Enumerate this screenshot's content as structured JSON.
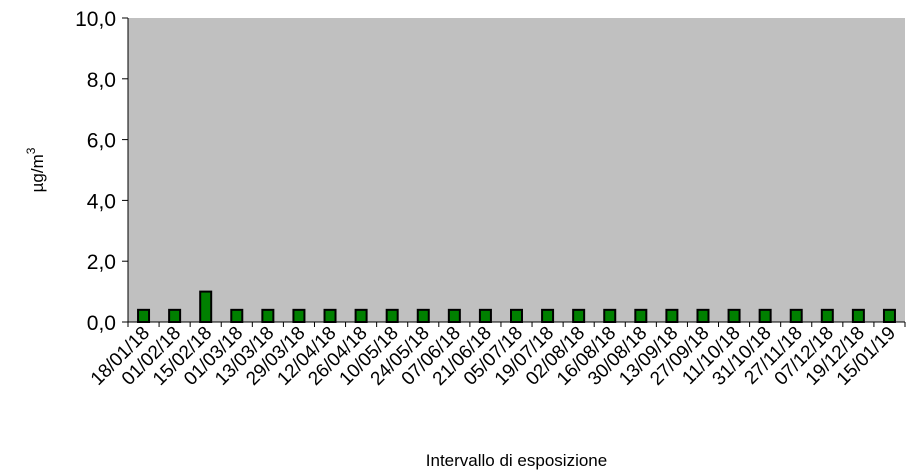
{
  "chart_data": {
    "type": "bar",
    "xlabel": "Intervallo di esposizione",
    "ylabel": "µg/m",
    "ylabel_superscript": "3",
    "ylim": [
      0,
      10
    ],
    "yticks": [
      "0,0",
      "2,0",
      "4,0",
      "6,0",
      "8,0",
      "10,0"
    ],
    "ytick_values": [
      0,
      2,
      4,
      6,
      8,
      10
    ],
    "grid": false,
    "legend": "none",
    "categories": [
      "18/01/18",
      "01/02/18",
      "15/02/18",
      "01/03/18",
      "13/03/18",
      "29/03/18",
      "12/04/18",
      "26/04/18",
      "10/05/18",
      "24/05/18",
      "07/06/18",
      "21/06/18",
      "05/07/18",
      "19/07/18",
      "02/08/18",
      "16/08/18",
      "30/08/18",
      "13/09/18",
      "27/09/18",
      "11/10/18",
      "31/10/18",
      "27/11/18",
      "07/12/18",
      "19/12/18",
      "15/01/19"
    ],
    "values": [
      0.4,
      0.4,
      1.0,
      0.4,
      0.4,
      0.4,
      0.4,
      0.4,
      0.4,
      0.4,
      0.4,
      0.4,
      0.4,
      0.4,
      0.4,
      0.4,
      0.4,
      0.4,
      0.4,
      0.4,
      0.4,
      0.4,
      0.4,
      0.4,
      0.4
    ],
    "colors": {
      "plot_background": "#c0c0c0",
      "bar_fill": "#008000",
      "bar_stroke": "#000000",
      "axis": "#000000"
    }
  }
}
